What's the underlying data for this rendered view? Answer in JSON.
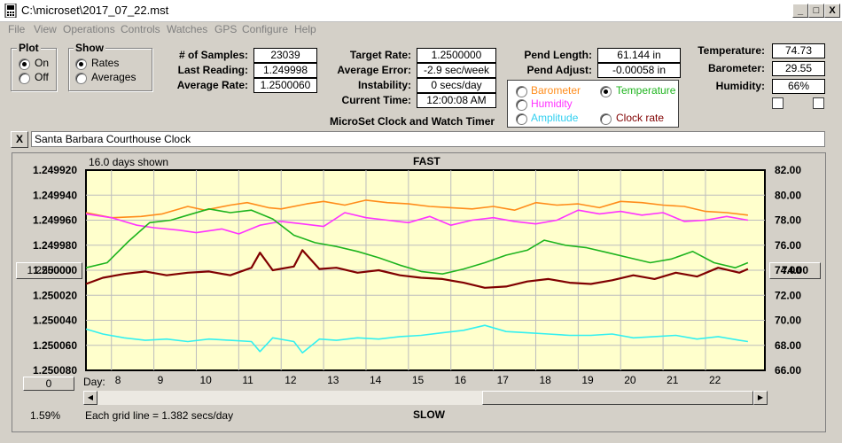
{
  "window": {
    "title": "C:\\microset\\2017_07_22.mst",
    "min": "_",
    "max": "□",
    "close": "X"
  },
  "menu": [
    "File",
    "View",
    "Operations",
    "Controls",
    "Watches",
    "GPS",
    "Configure",
    "Help"
  ],
  "plot": {
    "title": "Plot",
    "on": "On",
    "off": "Off",
    "selected": "On"
  },
  "show": {
    "title": "Show",
    "rates": "Rates",
    "averages": "Averages",
    "selected": "Rates"
  },
  "stats": {
    "samples_label": "# of Samples:",
    "samples": "23039",
    "last_label": "Last Reading:",
    "last": "1.249998",
    "avgrate_label": "Average Rate:",
    "avgrate": "1.2500060",
    "target_label": "Target Rate:",
    "target": "1.2500000",
    "averr_label": "Average Error:",
    "averr": "-2.9 sec/week",
    "instab_label": "Instability:",
    "instab": "0 secs/day",
    "time_label": "Current Time:",
    "time": "12:00:08 AM",
    "pendlen_label": "Pend Length:",
    "pendlen": "61.144 in",
    "pendadj_label": "Pend Adjust:",
    "pendadj": "-0.00058 in",
    "temp_label": "Temperature:",
    "temp": "74.73",
    "baro_label": "Barometer:",
    "baro": "29.55",
    "hum_label": "Humidity:",
    "hum": "66%"
  },
  "sensors": {
    "barometer": "Barometer",
    "temperature": "Temperature",
    "humidity": "Humidity",
    "amplitude": "Amplitude",
    "clockrate": "Clock rate",
    "selected": "Temperature"
  },
  "heading": "MicroSet Clock and Watch Timer",
  "clock_name": "Santa Barbara Courthouse Clock",
  "close_x": "X",
  "chart_data": {
    "type": "line",
    "top_label": "FAST",
    "bottom_label": "SLOW",
    "days_shown": "16.0 days shown",
    "grid_note": "Each grid line = 1.382 secs/day",
    "percent": "1.59%",
    "day_label": "Day:",
    "left_button": "1.250000",
    "right_button": "74.00",
    "zero_button": "0",
    "left_ticks": [
      "1.249920",
      "1.249940",
      "1.249960",
      "1.249980",
      "1.250000",
      "1.250020",
      "1.250040",
      "1.250060",
      "1.250080"
    ],
    "right_ticks": [
      "82.00",
      "80.00",
      "78.00",
      "76.00",
      "74.00",
      "72.00",
      "70.00",
      "68.00",
      "66.00"
    ],
    "left_axis": {
      "top": 1.24992,
      "bottom": 1.25008,
      "reversed": true
    },
    "right_axis": {
      "min": 66,
      "max": 82
    },
    "x": [
      7.4,
      23.4
    ],
    "day_ticks": [
      8,
      9,
      10,
      11,
      12,
      13,
      14,
      15,
      16,
      17,
      18,
      19,
      20,
      21,
      22
    ],
    "colors": {
      "orange": "#ff8c1a",
      "magenta": "#ff33ff",
      "green": "#1eb41e",
      "darkred": "#800000",
      "cyan": "#33f0f0",
      "plotbg": "#ffffcc"
    },
    "series": [
      {
        "color": "orange",
        "x": [
          7.4,
          8.0,
          8.7,
          9.2,
          9.8,
          10.2,
          10.8,
          11.2,
          11.7,
          12.0,
          12.6,
          13.0,
          13.5,
          14.0,
          14.5,
          15.0,
          15.5,
          16.0,
          16.5,
          17.0,
          17.5,
          18.0,
          18.5,
          19.0,
          19.5,
          20.0,
          20.5,
          21.0,
          21.5,
          22.0,
          22.5,
          23.0
        ],
        "y": [
          78.6,
          78.2,
          78.3,
          78.5,
          79.1,
          78.8,
          79.2,
          79.4,
          79.0,
          78.9,
          79.3,
          79.5,
          79.2,
          79.6,
          79.4,
          79.3,
          79.1,
          79.0,
          78.9,
          79.1,
          78.8,
          79.4,
          79.2,
          79.3,
          79.0,
          79.5,
          79.4,
          79.2,
          79.1,
          78.7,
          78.6,
          78.4
        ]
      },
      {
        "color": "magenta",
        "x": [
          7.4,
          8.0,
          8.6,
          9.0,
          9.6,
          10.0,
          10.6,
          11.0,
          11.5,
          12.0,
          12.5,
          13.0,
          13.5,
          14.0,
          14.5,
          15.0,
          15.5,
          16.0,
          16.5,
          17.0,
          17.5,
          18.0,
          18.5,
          19.0,
          19.5,
          20.0,
          20.5,
          21.0,
          21.5,
          22.0,
          22.5,
          23.0
        ],
        "y": [
          78.5,
          78.2,
          77.6,
          77.4,
          77.2,
          77.0,
          77.3,
          76.9,
          77.6,
          77.9,
          77.7,
          77.5,
          78.6,
          78.2,
          78.0,
          77.8,
          78.3,
          77.6,
          78.0,
          78.2,
          77.9,
          77.7,
          78.0,
          78.8,
          78.5,
          78.7,
          78.4,
          78.6,
          77.9,
          78.0,
          78.3,
          78.0
        ]
      },
      {
        "color": "green",
        "x": [
          7.4,
          7.9,
          8.4,
          8.9,
          9.4,
          9.8,
          10.3,
          10.8,
          11.3,
          11.8,
          12.3,
          12.8,
          13.3,
          13.8,
          14.3,
          14.8,
          15.3,
          15.8,
          16.3,
          16.8,
          17.3,
          17.8,
          18.2,
          18.7,
          19.2,
          19.7,
          20.2,
          20.7,
          21.2,
          21.7,
          22.2,
          22.7,
          23.0
        ],
        "y": [
          74.2,
          74.6,
          76.3,
          77.8,
          78.0,
          78.4,
          78.9,
          78.6,
          78.8,
          78.1,
          76.8,
          76.2,
          75.9,
          75.5,
          75.0,
          74.4,
          73.9,
          73.7,
          74.1,
          74.6,
          75.2,
          75.6,
          76.4,
          76.0,
          75.8,
          75.4,
          75.0,
          74.6,
          74.9,
          75.5,
          74.6,
          74.2,
          74.6
        ]
      },
      {
        "color": "darkred",
        "x": [
          7.4,
          7.8,
          8.3,
          8.8,
          9.3,
          9.8,
          10.3,
          10.8,
          11.3,
          11.5,
          11.8,
          12.3,
          12.5,
          12.9,
          13.3,
          13.8,
          14.3,
          14.8,
          15.3,
          15.8,
          16.3,
          16.8,
          17.3,
          17.8,
          18.3,
          18.8,
          19.3,
          19.8,
          20.3,
          20.8,
          21.3,
          21.8,
          22.3,
          22.8,
          23.0
        ],
        "y": [
          72.9,
          73.4,
          73.7,
          73.9,
          73.6,
          73.8,
          73.9,
          73.6,
          74.2,
          75.4,
          74.0,
          74.3,
          75.6,
          74.1,
          74.2,
          73.8,
          74.0,
          73.6,
          73.4,
          73.3,
          73.0,
          72.6,
          72.7,
          73.1,
          73.3,
          73.0,
          72.9,
          73.2,
          73.6,
          73.3,
          73.8,
          73.5,
          74.2,
          73.8,
          74.1
        ]
      },
      {
        "color": "cyan",
        "x": [
          7.4,
          7.8,
          8.3,
          8.8,
          9.3,
          9.8,
          10.3,
          10.8,
          11.3,
          11.5,
          11.8,
          12.3,
          12.5,
          12.9,
          13.3,
          13.8,
          14.3,
          14.8,
          15.3,
          15.8,
          16.3,
          16.8,
          17.3,
          17.8,
          18.3,
          18.8,
          19.3,
          19.8,
          20.3,
          20.8,
          21.3,
          21.8,
          22.3,
          22.8,
          23.0
        ],
        "y": [
          69.3,
          68.9,
          68.6,
          68.4,
          68.5,
          68.3,
          68.5,
          68.4,
          68.3,
          67.5,
          68.6,
          68.3,
          67.4,
          68.5,
          68.4,
          68.6,
          68.5,
          68.7,
          68.8,
          69.0,
          69.2,
          69.6,
          69.1,
          69.0,
          68.9,
          68.8,
          68.8,
          68.9,
          68.6,
          68.7,
          68.8,
          68.5,
          68.7,
          68.4,
          68.3
        ]
      }
    ]
  }
}
